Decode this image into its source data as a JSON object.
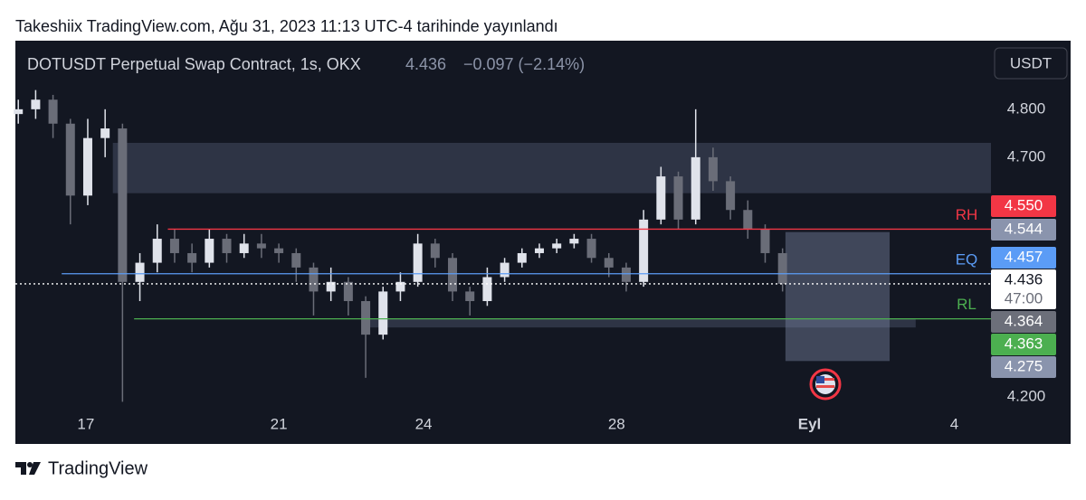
{
  "header": {
    "text": "Takeshiix TradingView.com, Ağu 31, 2023 11:13 UTC-4 tarihinde yayınlandı"
  },
  "footer": {
    "brand": "TradingView"
  },
  "chart_data": {
    "type": "candlestick",
    "title": "DOTUSDT Perpetual Swap Contract, 1s, OKX",
    "last_price": 4.436,
    "change": "−0.097 (−2.14%)",
    "currency": "USDT",
    "countdown": "47:00",
    "xlim": [
      -1.46,
      18.76
    ],
    "xticks": [
      {
        "value": 0,
        "label": "17"
      },
      {
        "value": 4,
        "label": "21"
      },
      {
        "value": 7,
        "label": "24"
      },
      {
        "value": 11,
        "label": "28"
      },
      {
        "value": 15,
        "label": "Eyl"
      },
      {
        "value": 18,
        "label": "4"
      }
    ],
    "ylim": [
      4.17,
      4.943
    ],
    "yticks": [
      {
        "value": 4.8,
        "label": "4.800"
      },
      {
        "value": 4.7,
        "label": "4.700"
      },
      {
        "value": 4.2,
        "label": "4.200"
      }
    ],
    "up_color": "#e0e3eb",
    "down_color": "#6a6d78",
    "x": [
      -1.4,
      -1.04,
      -0.68,
      -0.32,
      0.04,
      0.4,
      0.76,
      1.12,
      1.48,
      1.84,
      2.2,
      2.56,
      2.92,
      3.28,
      3.64,
      4.0,
      4.36,
      4.72,
      5.08,
      5.44,
      5.8,
      6.16,
      6.52,
      6.88,
      7.24,
      7.6,
      7.96,
      8.32,
      8.68,
      9.04,
      9.4,
      9.76,
      10.12,
      10.48,
      10.84,
      11.2,
      11.56,
      11.92,
      12.28,
      12.64,
      13.0,
      13.36,
      13.72,
      14.08,
      14.44
    ],
    "open": [
      4.79,
      4.8,
      4.82,
      4.77,
      4.62,
      4.74,
      4.76,
      4.44,
      4.48,
      4.53,
      4.5,
      4.48,
      4.53,
      4.5,
      4.52,
      4.51,
      4.5,
      4.47,
      4.42,
      4.44,
      4.4,
      4.33,
      4.42,
      4.44,
      4.52,
      4.49,
      4.42,
      4.4,
      4.45,
      4.48,
      4.5,
      4.51,
      4.52,
      4.53,
      4.49,
      4.47,
      4.44,
      4.57,
      4.66,
      4.57,
      4.7,
      4.65,
      4.59,
      4.55,
      4.5
    ],
    "high": [
      4.82,
      4.84,
      4.83,
      4.78,
      4.78,
      4.8,
      4.77,
      4.5,
      4.56,
      4.55,
      4.52,
      4.55,
      4.54,
      4.54,
      4.54,
      4.52,
      4.51,
      4.48,
      4.47,
      4.45,
      4.41,
      4.43,
      4.46,
      4.54,
      4.53,
      4.5,
      4.43,
      4.47,
      4.49,
      4.51,
      4.52,
      4.53,
      4.54,
      4.54,
      4.5,
      4.48,
      4.59,
      4.68,
      4.67,
      4.8,
      4.72,
      4.66,
      4.61,
      4.56,
      4.51
    ],
    "low": [
      4.77,
      4.78,
      4.74,
      4.56,
      4.6,
      4.7,
      4.19,
      4.4,
      4.46,
      4.48,
      4.46,
      4.47,
      4.48,
      4.49,
      4.49,
      4.48,
      4.44,
      4.37,
      4.4,
      4.37,
      4.24,
      4.32,
      4.4,
      4.43,
      4.47,
      4.4,
      4.37,
      4.39,
      4.44,
      4.47,
      4.49,
      4.5,
      4.51,
      4.48,
      4.45,
      4.42,
      4.43,
      4.56,
      4.55,
      4.56,
      4.63,
      4.57,
      4.53,
      4.48,
      4.42
    ],
    "close": [
      4.8,
      4.82,
      4.77,
      4.62,
      4.74,
      4.76,
      4.44,
      4.48,
      4.53,
      4.5,
      4.48,
      4.53,
      4.5,
      4.52,
      4.51,
      4.5,
      4.47,
      4.42,
      4.44,
      4.4,
      4.33,
      4.42,
      4.44,
      4.52,
      4.49,
      4.42,
      4.4,
      4.45,
      4.48,
      4.5,
      4.51,
      4.52,
      4.53,
      4.49,
      4.47,
      4.44,
      4.57,
      4.66,
      4.57,
      4.7,
      4.65,
      4.59,
      4.55,
      4.5,
      4.436
    ],
    "levels": {
      "names": [
        "RH",
        "EQ",
        "RL"
      ],
      "values": [
        4.55,
        4.457,
        4.363
      ],
      "value_labels": [
        "4.550",
        "4.457",
        "4.363"
      ],
      "colors": [
        "#f23645",
        "#5b9cf6",
        "#4caf50"
      ],
      "starts": [
        1.7,
        -0.5,
        1.0
      ]
    },
    "zones": [
      {
        "ylim": [
          4.625,
          4.73
        ],
        "xlim": [
          0.56,
          18.76
        ]
      },
      {
        "ylim": [
          4.345,
          4.364
        ],
        "xlim": [
          5.72,
          17.2
        ]
      },
      {
        "ylim": [
          4.275,
          4.544
        ],
        "xlim": [
          14.5,
          16.66
        ]
      }
    ]
  }
}
